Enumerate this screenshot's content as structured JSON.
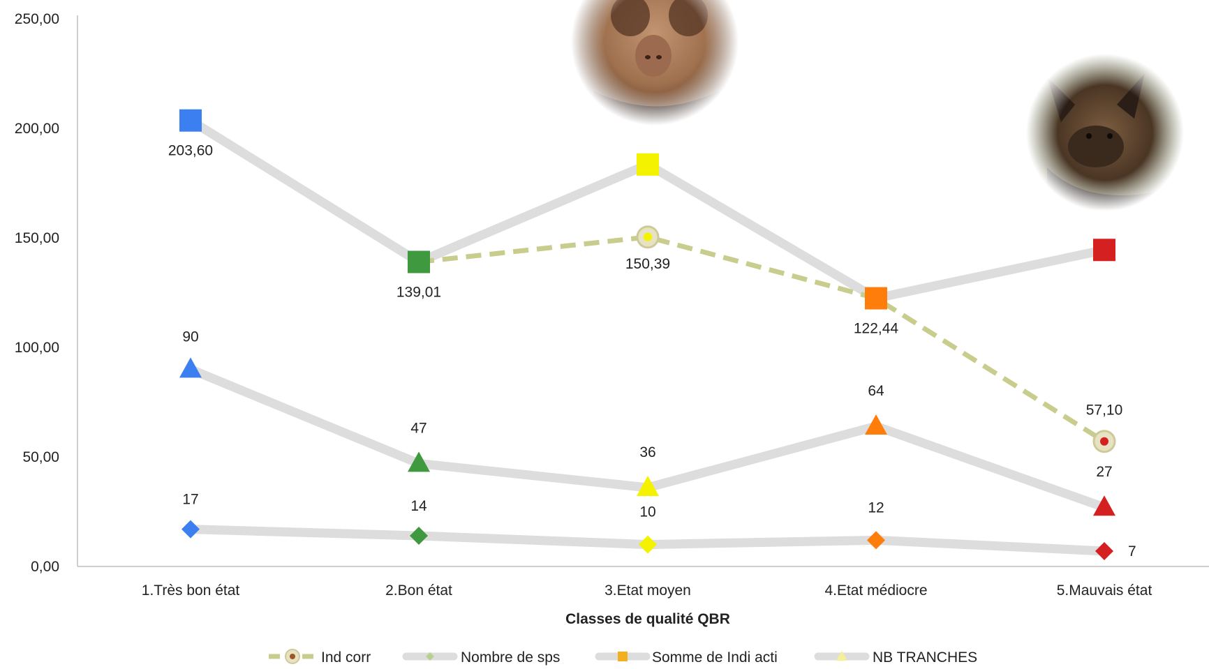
{
  "chart_data": {
    "type": "line",
    "xlabel": "Classes de qualité QBR",
    "ylabel": "",
    "ylim": [
      0,
      250
    ],
    "yticks": [
      "0,00",
      "50,00",
      "100,00",
      "150,00",
      "200,00",
      "250,00"
    ],
    "ytick_values": [
      0,
      50,
      100,
      150,
      200,
      250
    ],
    "categories": [
      "1.Très bon état",
      "2.Bon état",
      "3.Etat moyen",
      "4.Etat médiocre",
      "5.Mauvais état"
    ],
    "point_colors": [
      "#3b7ff0",
      "#3f9a3f",
      "#f5f200",
      "#ff7d0a",
      "#d42020"
    ],
    "legend_position": "bottom",
    "series": [
      {
        "name": "Ind corr",
        "values": [
          null,
          139.01,
          150.39,
          122.44,
          57.1
        ],
        "labels": [
          "",
          "",
          "150,39",
          "",
          "57,10"
        ],
        "line_color": "#c8cc8c",
        "dashed": true,
        "marker": "circle"
      },
      {
        "name": "Nombre de sps",
        "values": [
          17,
          14,
          10,
          12,
          7
        ],
        "labels": [
          "17",
          "14",
          "10",
          "12",
          "7"
        ],
        "line_color": "#dddddd",
        "dashed": false,
        "marker": "diamond"
      },
      {
        "name": "Somme de Indi acti",
        "values": [
          203.6,
          139.01,
          183.5,
          122.44,
          144.5
        ],
        "labels": [
          "203,60",
          "139,01",
          "",
          "122,44",
          ""
        ],
        "line_color": "#dddddd",
        "dashed": false,
        "marker": "square"
      },
      {
        "name": "NB TRANCHES",
        "values": [
          90,
          47,
          36,
          64,
          27
        ],
        "labels": [
          "90",
          "47",
          "36",
          "64",
          "27"
        ],
        "line_color": "#dddddd",
        "dashed": false,
        "marker": "triangle"
      }
    ]
  },
  "photos": [
    {
      "icon": "horseshoe-bat-photo",
      "colors": [
        "#b98a66",
        "#6e4428",
        "#2a1a12"
      ]
    },
    {
      "icon": "pipistrelle-bat-photo",
      "colors": [
        "#8a6a4a",
        "#3a2a1e",
        "#5a6a3a"
      ]
    }
  ]
}
